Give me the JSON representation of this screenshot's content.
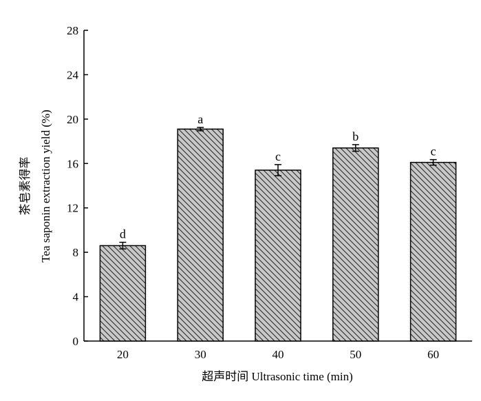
{
  "chart_data": {
    "type": "bar",
    "categories": [
      "20",
      "30",
      "40",
      "50",
      "60"
    ],
    "values": [
      8.6,
      19.1,
      15.4,
      17.4,
      16.1
    ],
    "errors": [
      0.3,
      0.15,
      0.5,
      0.3,
      0.25
    ],
    "labels": [
      "d",
      "a",
      "c",
      "b",
      "c"
    ],
    "xlabel": "超声时间 Ultrasonic time (min)",
    "ylabel_cn": "茶皂素得率",
    "ylabel_en": "Tea saponin extraction yield (%)",
    "ylim": [
      0,
      28
    ],
    "yticks": [
      "0",
      "4",
      "8",
      "12",
      "16",
      "20",
      "24",
      "28"
    ],
    "grid": false,
    "bar_fill": "#c8c8c8",
    "bar_hatch": "diagonal",
    "ylabel_cn_color": "#7a4d7a"
  }
}
